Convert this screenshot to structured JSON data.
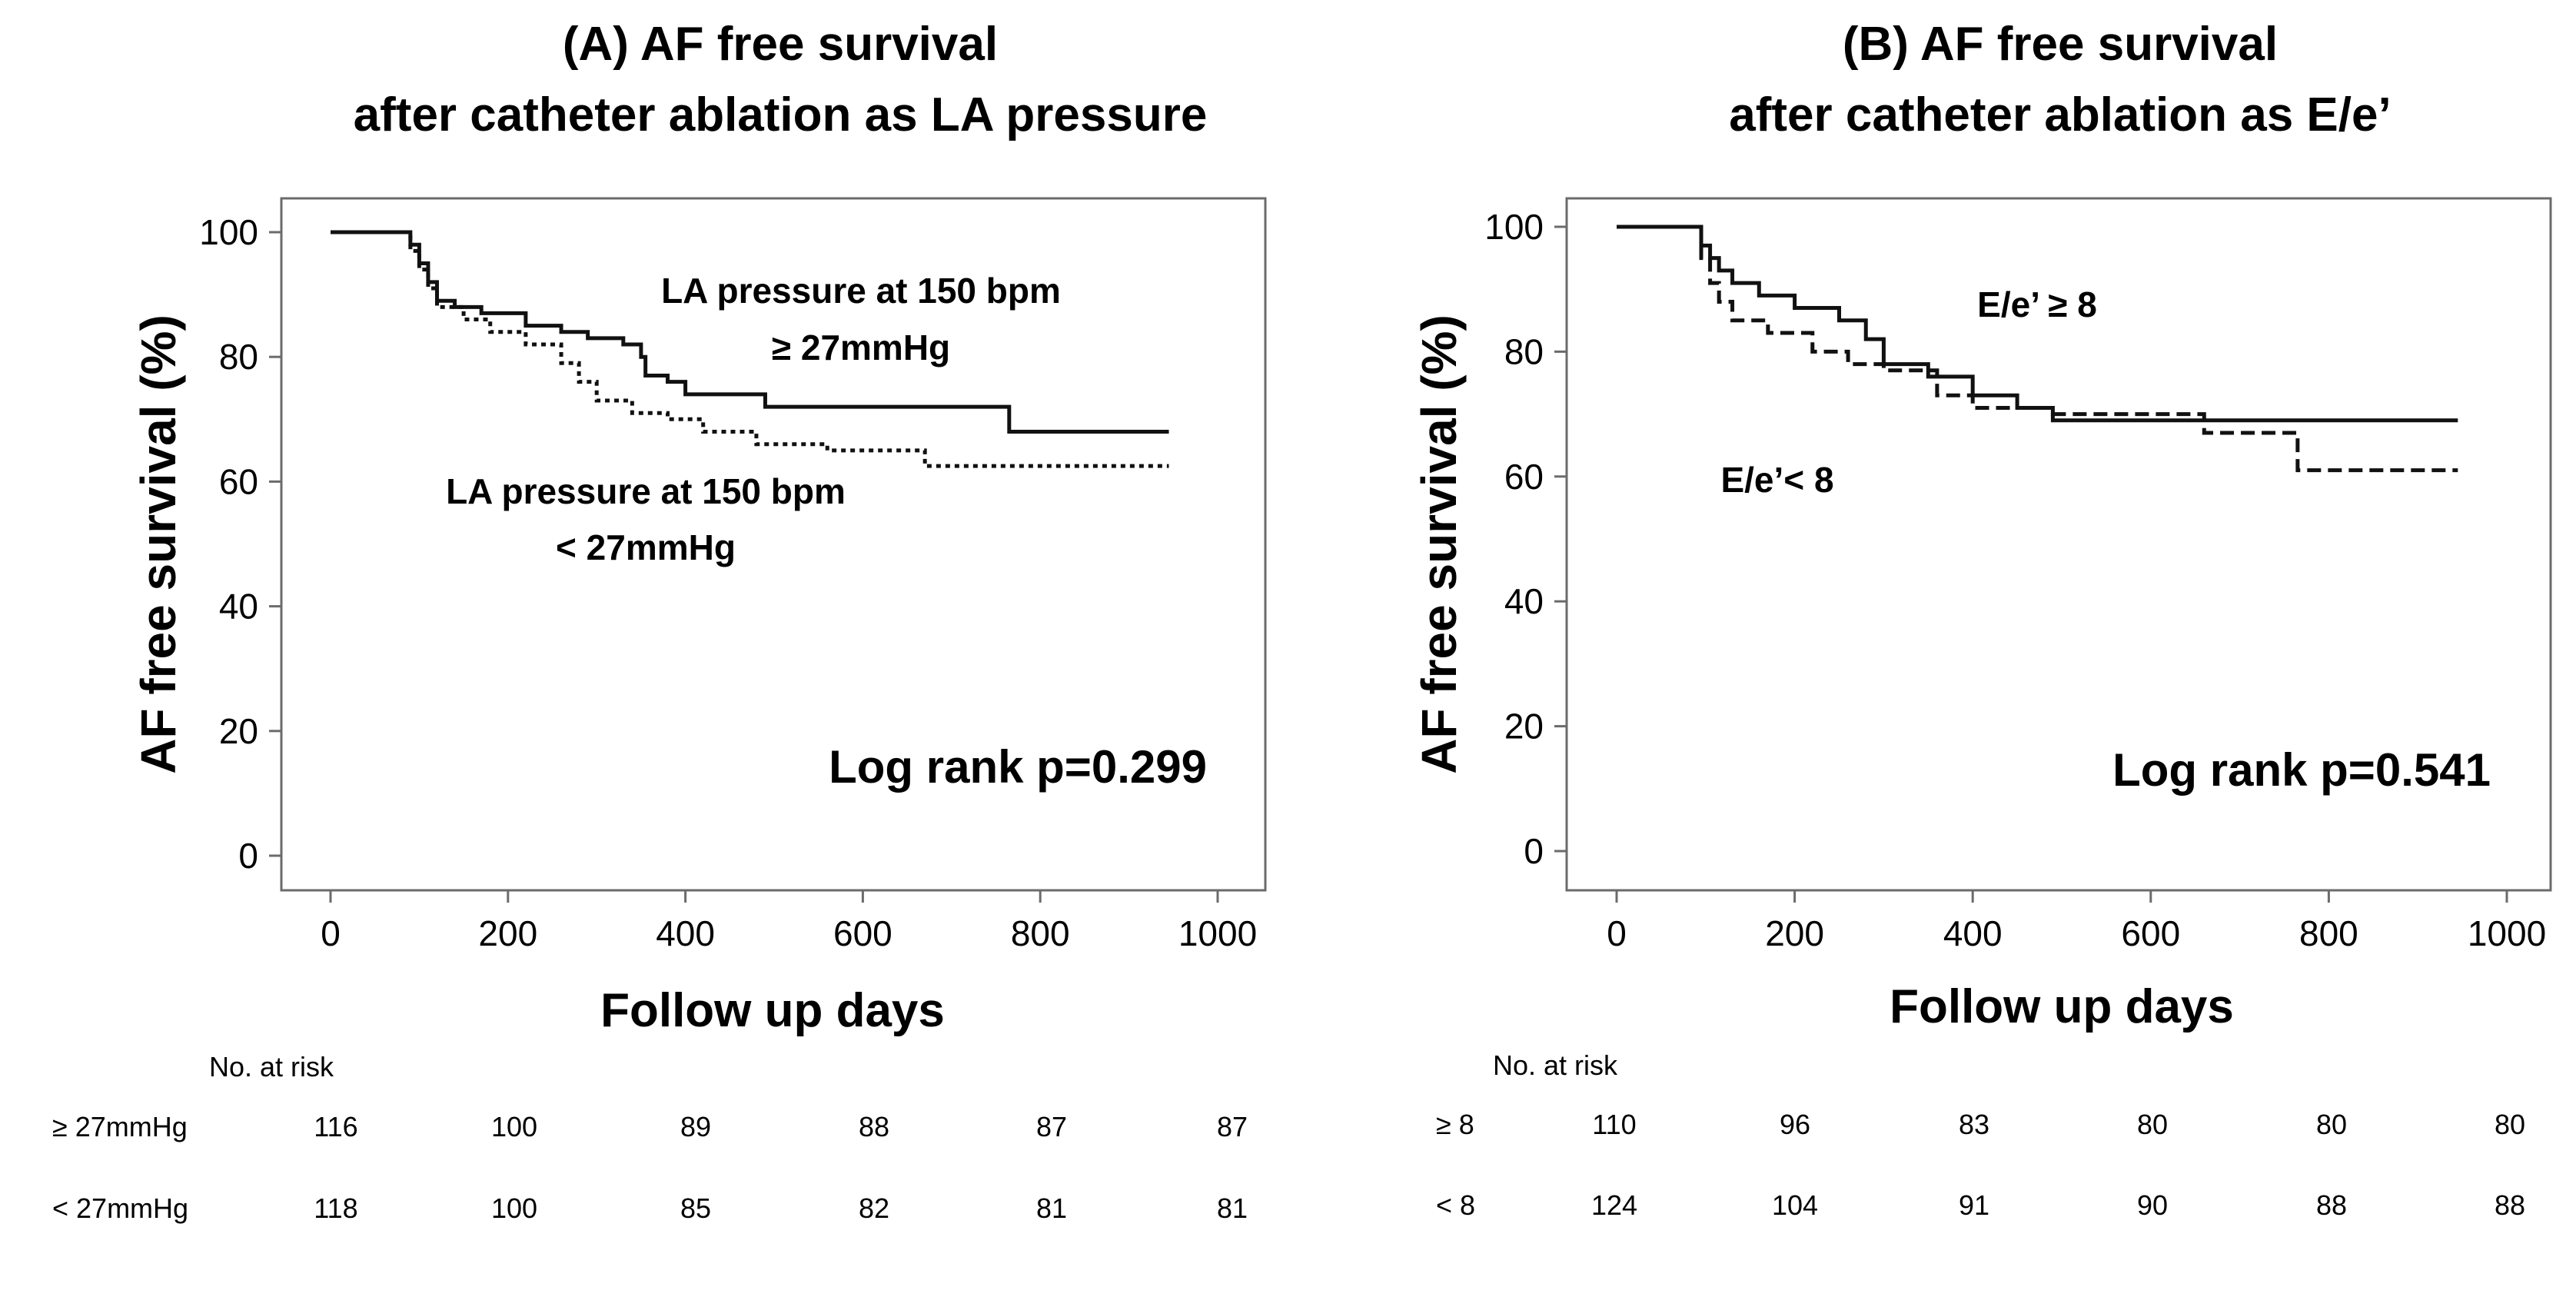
{
  "chart_data": [
    {
      "type": "line",
      "title": [
        "(A) AF free survival",
        "after catheter ablation as LA pressure"
      ],
      "xlabel": "Follow up days",
      "ylabel": "AF free survival (%)",
      "xlim": [
        0,
        1000
      ],
      "ylim": [
        0,
        100
      ],
      "xticks": [
        0,
        200,
        400,
        600,
        800,
        1000
      ],
      "yticks": [
        0,
        20,
        40,
        60,
        80,
        100
      ],
      "grid": false,
      "series": [
        {
          "name": "LA pressure at 150 bpm ≥ 27mmHg",
          "style": "solid",
          "label_lines": [
            "LA pressure at 150 bpm",
            "≥ 27mmHg"
          ],
          "x": [
            0,
            85,
            90,
            100,
            110,
            120,
            140,
            170,
            220,
            260,
            290,
            330,
            350,
            355,
            380,
            400,
            490,
            590,
            765,
            945
          ],
          "y": [
            100,
            100,
            98,
            95,
            92,
            89,
            88,
            87,
            85,
            84,
            83,
            82,
            80,
            77,
            76,
            74,
            72,
            72,
            68,
            68
          ]
        },
        {
          "name": "LA pressure at 150 bpm < 27mmHg",
          "style": "dotted",
          "label_lines": [
            "LA pressure at 150 bpm",
            "< 27mmHg"
          ],
          "x": [
            0,
            85,
            90,
            100,
            110,
            120,
            150,
            180,
            220,
            260,
            280,
            300,
            340,
            380,
            420,
            480,
            560,
            670,
            945
          ],
          "y": [
            100,
            100,
            97,
            94,
            91,
            88,
            86,
            84,
            82,
            79,
            76,
            73,
            71,
            70,
            68,
            66,
            65,
            62.5,
            62.5
          ]
        }
      ],
      "annotation": "Log rank p=0.299",
      "risk_table": {
        "header": "No. at risk",
        "rows": [
          {
            "label": "≥ 27mmHg",
            "values": [
              "116",
              "100",
              "89",
              "88",
              "87",
              "87"
            ]
          },
          {
            "label": "< 27mmHg",
            "values": [
              "118",
              "100",
              "85",
              "82",
              "81",
              "81"
            ]
          }
        ]
      }
    },
    {
      "type": "line",
      "title": [
        "(B) AF free survival",
        "after catheter ablation as E/e’"
      ],
      "xlabel": "Follow up days",
      "ylabel": "AF free survival (%)",
      "xlim": [
        0,
        1000
      ],
      "ylim": [
        0,
        100
      ],
      "xticks": [
        0,
        200,
        400,
        600,
        800,
        1000
      ],
      "yticks": [
        0,
        20,
        40,
        60,
        80,
        100
      ],
      "grid": false,
      "series": [
        {
          "name": "E/e’ ≥ 8",
          "style": "solid",
          "label_lines": [
            "E/e’ ≥ 8"
          ],
          "x": [
            0,
            85,
            95,
            105,
            115,
            130,
            160,
            200,
            250,
            280,
            300,
            350,
            400,
            450,
            490,
            945
          ],
          "y": [
            100,
            100,
            97,
            95,
            93,
            91,
            89,
            87,
            85,
            82,
            78,
            76,
            73,
            71,
            69,
            69
          ]
        },
        {
          "name": "E/e’< 8",
          "style": "dashed",
          "label_lines": [
            "E/e’< 8"
          ],
          "x": [
            0,
            85,
            95,
            105,
            115,
            130,
            170,
            220,
            260,
            300,
            360,
            400,
            490,
            660,
            765,
            945
          ],
          "y": [
            100,
            100,
            95,
            91,
            88,
            85,
            83,
            80,
            78,
            77,
            73,
            71,
            70,
            67,
            61,
            61
          ]
        }
      ],
      "annotation": "Log rank p=0.541",
      "risk_table": {
        "header": "No. at risk",
        "rows": [
          {
            "label": "≥ 8",
            "values": [
              "110",
              "96",
              "83",
              "80",
              "80",
              "80"
            ]
          },
          {
            "label": "< 8",
            "values": [
              "124",
              "104",
              "91",
              "90",
              "88",
              "88"
            ]
          }
        ]
      }
    }
  ]
}
